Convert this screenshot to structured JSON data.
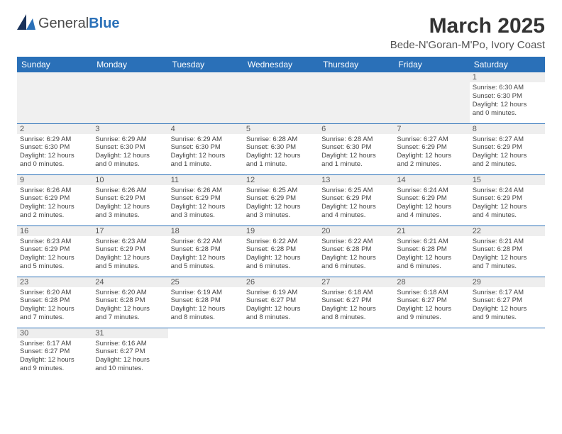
{
  "logo": {
    "word1": "General",
    "word2": "Blue"
  },
  "title": "March 2025",
  "subtitle": "Bede-N'Goran-M'Po, Ivory Coast",
  "colors": {
    "header_bg": "#2a70b8",
    "header_fg": "#ffffff"
  },
  "weekdays": [
    "Sunday",
    "Monday",
    "Tuesday",
    "Wednesday",
    "Thursday",
    "Friday",
    "Saturday"
  ],
  "weeks": [
    [
      null,
      null,
      null,
      null,
      null,
      null,
      {
        "n": "1",
        "sr": "Sunrise: 6:30 AM",
        "ss": "Sunset: 6:30 PM",
        "d1": "Daylight: 12 hours",
        "d2": "and 0 minutes."
      }
    ],
    [
      {
        "n": "2",
        "sr": "Sunrise: 6:29 AM",
        "ss": "Sunset: 6:30 PM",
        "d1": "Daylight: 12 hours",
        "d2": "and 0 minutes."
      },
      {
        "n": "3",
        "sr": "Sunrise: 6:29 AM",
        "ss": "Sunset: 6:30 PM",
        "d1": "Daylight: 12 hours",
        "d2": "and 0 minutes."
      },
      {
        "n": "4",
        "sr": "Sunrise: 6:29 AM",
        "ss": "Sunset: 6:30 PM",
        "d1": "Daylight: 12 hours",
        "d2": "and 1 minute."
      },
      {
        "n": "5",
        "sr": "Sunrise: 6:28 AM",
        "ss": "Sunset: 6:30 PM",
        "d1": "Daylight: 12 hours",
        "d2": "and 1 minute."
      },
      {
        "n": "6",
        "sr": "Sunrise: 6:28 AM",
        "ss": "Sunset: 6:30 PM",
        "d1": "Daylight: 12 hours",
        "d2": "and 1 minute."
      },
      {
        "n": "7",
        "sr": "Sunrise: 6:27 AM",
        "ss": "Sunset: 6:29 PM",
        "d1": "Daylight: 12 hours",
        "d2": "and 2 minutes."
      },
      {
        "n": "8",
        "sr": "Sunrise: 6:27 AM",
        "ss": "Sunset: 6:29 PM",
        "d1": "Daylight: 12 hours",
        "d2": "and 2 minutes."
      }
    ],
    [
      {
        "n": "9",
        "sr": "Sunrise: 6:26 AM",
        "ss": "Sunset: 6:29 PM",
        "d1": "Daylight: 12 hours",
        "d2": "and 2 minutes."
      },
      {
        "n": "10",
        "sr": "Sunrise: 6:26 AM",
        "ss": "Sunset: 6:29 PM",
        "d1": "Daylight: 12 hours",
        "d2": "and 3 minutes."
      },
      {
        "n": "11",
        "sr": "Sunrise: 6:26 AM",
        "ss": "Sunset: 6:29 PM",
        "d1": "Daylight: 12 hours",
        "d2": "and 3 minutes."
      },
      {
        "n": "12",
        "sr": "Sunrise: 6:25 AM",
        "ss": "Sunset: 6:29 PM",
        "d1": "Daylight: 12 hours",
        "d2": "and 3 minutes."
      },
      {
        "n": "13",
        "sr": "Sunrise: 6:25 AM",
        "ss": "Sunset: 6:29 PM",
        "d1": "Daylight: 12 hours",
        "d2": "and 4 minutes."
      },
      {
        "n": "14",
        "sr": "Sunrise: 6:24 AM",
        "ss": "Sunset: 6:29 PM",
        "d1": "Daylight: 12 hours",
        "d2": "and 4 minutes."
      },
      {
        "n": "15",
        "sr": "Sunrise: 6:24 AM",
        "ss": "Sunset: 6:29 PM",
        "d1": "Daylight: 12 hours",
        "d2": "and 4 minutes."
      }
    ],
    [
      {
        "n": "16",
        "sr": "Sunrise: 6:23 AM",
        "ss": "Sunset: 6:29 PM",
        "d1": "Daylight: 12 hours",
        "d2": "and 5 minutes."
      },
      {
        "n": "17",
        "sr": "Sunrise: 6:23 AM",
        "ss": "Sunset: 6:29 PM",
        "d1": "Daylight: 12 hours",
        "d2": "and 5 minutes."
      },
      {
        "n": "18",
        "sr": "Sunrise: 6:22 AM",
        "ss": "Sunset: 6:28 PM",
        "d1": "Daylight: 12 hours",
        "d2": "and 5 minutes."
      },
      {
        "n": "19",
        "sr": "Sunrise: 6:22 AM",
        "ss": "Sunset: 6:28 PM",
        "d1": "Daylight: 12 hours",
        "d2": "and 6 minutes."
      },
      {
        "n": "20",
        "sr": "Sunrise: 6:22 AM",
        "ss": "Sunset: 6:28 PM",
        "d1": "Daylight: 12 hours",
        "d2": "and 6 minutes."
      },
      {
        "n": "21",
        "sr": "Sunrise: 6:21 AM",
        "ss": "Sunset: 6:28 PM",
        "d1": "Daylight: 12 hours",
        "d2": "and 6 minutes."
      },
      {
        "n": "22",
        "sr": "Sunrise: 6:21 AM",
        "ss": "Sunset: 6:28 PM",
        "d1": "Daylight: 12 hours",
        "d2": "and 7 minutes."
      }
    ],
    [
      {
        "n": "23",
        "sr": "Sunrise: 6:20 AM",
        "ss": "Sunset: 6:28 PM",
        "d1": "Daylight: 12 hours",
        "d2": "and 7 minutes."
      },
      {
        "n": "24",
        "sr": "Sunrise: 6:20 AM",
        "ss": "Sunset: 6:28 PM",
        "d1": "Daylight: 12 hours",
        "d2": "and 7 minutes."
      },
      {
        "n": "25",
        "sr": "Sunrise: 6:19 AM",
        "ss": "Sunset: 6:28 PM",
        "d1": "Daylight: 12 hours",
        "d2": "and 8 minutes."
      },
      {
        "n": "26",
        "sr": "Sunrise: 6:19 AM",
        "ss": "Sunset: 6:27 PM",
        "d1": "Daylight: 12 hours",
        "d2": "and 8 minutes."
      },
      {
        "n": "27",
        "sr": "Sunrise: 6:18 AM",
        "ss": "Sunset: 6:27 PM",
        "d1": "Daylight: 12 hours",
        "d2": "and 8 minutes."
      },
      {
        "n": "28",
        "sr": "Sunrise: 6:18 AM",
        "ss": "Sunset: 6:27 PM",
        "d1": "Daylight: 12 hours",
        "d2": "and 9 minutes."
      },
      {
        "n": "29",
        "sr": "Sunrise: 6:17 AM",
        "ss": "Sunset: 6:27 PM",
        "d1": "Daylight: 12 hours",
        "d2": "and 9 minutes."
      }
    ],
    [
      {
        "n": "30",
        "sr": "Sunrise: 6:17 AM",
        "ss": "Sunset: 6:27 PM",
        "d1": "Daylight: 12 hours",
        "d2": "and 9 minutes."
      },
      {
        "n": "31",
        "sr": "Sunrise: 6:16 AM",
        "ss": "Sunset: 6:27 PM",
        "d1": "Daylight: 12 hours",
        "d2": "and 10 minutes."
      },
      null,
      null,
      null,
      null,
      null
    ]
  ]
}
